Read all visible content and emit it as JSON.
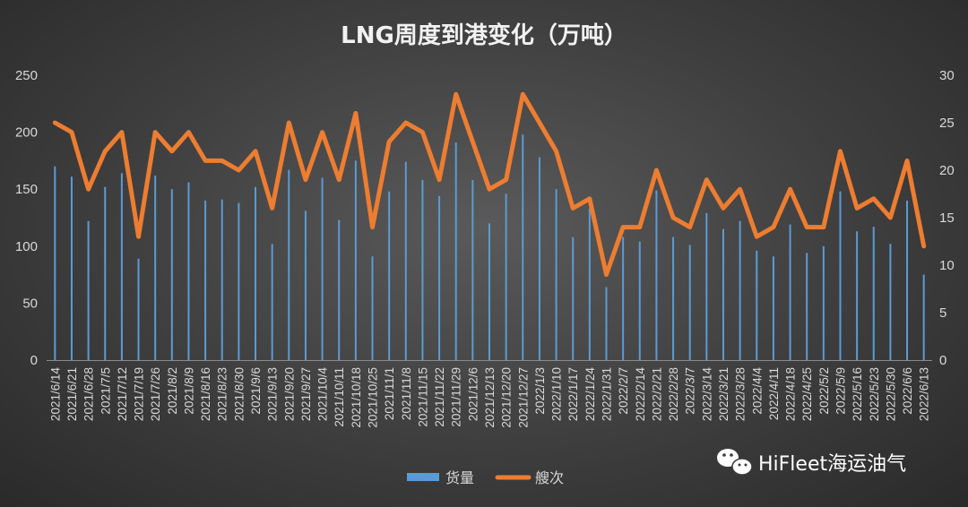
{
  "chart_data": {
    "type": "bar+line",
    "title": "LNG周度到港变化（万吨）",
    "categories": [
      "2021/6/14",
      "2021/6/21",
      "2021/6/28",
      "2021/7/5",
      "2021/7/12",
      "2021/7/19",
      "2021/7/26",
      "2021/8/2",
      "2021/8/9",
      "2021/8/16",
      "2021/8/23",
      "2021/8/30",
      "2021/9/6",
      "2021/9/13",
      "2021/9/20",
      "2021/9/27",
      "2021/10/4",
      "2021/10/11",
      "2021/10/18",
      "2021/10/25",
      "2021/11/1",
      "2021/11/8",
      "2021/11/15",
      "2021/11/22",
      "2021/11/29",
      "2021/12/6",
      "2021/12/13",
      "2021/12/20",
      "2021/12/27",
      "2022/1/3",
      "2022/1/10",
      "2022/1/17",
      "2022/1/24",
      "2022/1/31",
      "2022/2/7",
      "2022/2/14",
      "2022/2/21",
      "2022/2/28",
      "2022/3/7",
      "2022/3/14",
      "2022/3/21",
      "2022/3/28",
      "2022/4/4",
      "2022/4/11",
      "2022/4/18",
      "2022/4/25",
      "2022/5/2",
      "2022/5/9",
      "2022/5/16",
      "2022/5/23",
      "2022/5/30",
      "2022/6/6",
      "2022/6/13"
    ],
    "series": [
      {
        "name": "货量",
        "axis": "left",
        "type": "bar",
        "color": "#5b9bd5",
        "values": [
          170,
          161,
          122,
          152,
          164,
          89,
          162,
          150,
          156,
          140,
          141,
          138,
          152,
          102,
          167,
          131,
          160,
          123,
          175,
          91,
          148,
          174,
          158,
          144,
          191,
          158,
          120,
          146,
          198,
          178,
          150,
          108,
          133,
          64,
          108,
          104,
          149,
          108,
          101,
          129,
          115,
          122,
          96,
          91,
          119,
          94,
          100,
          148,
          113,
          117,
          102,
          140,
          75
        ]
      },
      {
        "name": "艘次",
        "axis": "right",
        "type": "line",
        "color": "#ed7d31",
        "values": [
          25,
          24,
          18,
          22,
          24,
          13,
          24,
          22,
          24,
          21,
          21,
          20,
          22,
          16,
          25,
          19,
          24,
          19,
          26,
          14,
          23,
          25,
          24,
          19,
          28,
          23,
          18,
          19,
          28,
          25,
          22,
          16,
          17,
          9,
          14,
          14,
          20,
          15,
          14,
          19,
          16,
          18,
          13,
          14,
          18,
          14,
          14,
          22,
          16,
          17,
          15,
          21,
          12
        ]
      }
    ],
    "y_left": {
      "min": 0,
      "max": 250,
      "ticks": [
        0,
        50,
        100,
        150,
        200,
        250
      ]
    },
    "y_right": {
      "min": 0,
      "max": 30,
      "ticks": [
        0,
        5,
        10,
        15,
        20,
        25,
        30
      ]
    },
    "legend_position": "bottom-center",
    "grid": false
  },
  "watermark": {
    "text": "HiFleet海运油气",
    "icon": "wechat-icon"
  },
  "colors": {
    "bar": "#5b9bd5",
    "line": "#ed7d31"
  }
}
